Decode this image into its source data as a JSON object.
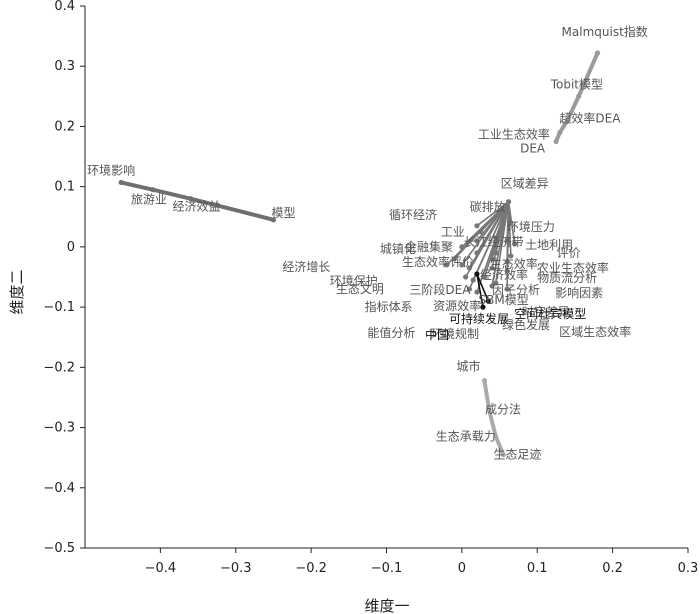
{
  "chart_data": {
    "type": "scatter",
    "title": "",
    "xlabel": "维度一",
    "ylabel": "维度二",
    "xlim": [
      -0.5,
      0.3
    ],
    "ylim": [
      -0.5,
      0.4
    ],
    "xticks": [
      "−0.4",
      "−0.3",
      "−0.2",
      "−0.1",
      "0",
      "0.1",
      "0.2",
      "0.3"
    ],
    "yticks": [
      "0.4",
      "0.3",
      "0.2",
      "0.1",
      "0",
      "−0.1",
      "−0.2",
      "−0.3",
      "−0.4",
      "−0.5"
    ],
    "xtick_values": [
      -0.4,
      -0.3,
      -0.2,
      -0.1,
      0,
      0.1,
      0.2,
      0.3
    ],
    "ytick_values": [
      0.4,
      0.3,
      0.2,
      0.1,
      0,
      -0.1,
      -0.2,
      -0.3,
      -0.4,
      -0.5
    ],
    "grid": false,
    "clusters": [
      {
        "color": "#9a9a9a",
        "points": [
          {
            "label": "Malmquist指数",
            "x": 0.18,
            "y": 0.322
          },
          {
            "label": "Tobit模型",
            "x": 0.155,
            "y": 0.25
          },
          {
            "label": "超效率DEA",
            "x": 0.14,
            "y": 0.21
          },
          {
            "label": "工业生态效率",
            "x": 0.13,
            "y": 0.19
          },
          {
            "label": "DEA",
            "x": 0.125,
            "y": 0.175
          }
        ]
      },
      {
        "color": "#6f6f6f",
        "points": [
          {
            "label": "环境影响",
            "x": -0.452,
            "y": 0.107
          },
          {
            "label": "旅游业",
            "x": -0.41,
            "y": 0.095
          },
          {
            "label": "经济效益",
            "x": -0.36,
            "y": 0.08
          },
          {
            "label": "模型",
            "x": -0.25,
            "y": 0.045
          }
        ]
      },
      {
        "color": "#777777",
        "points": [
          {
            "label": "区域差异",
            "x": 0.062,
            "y": 0.075
          },
          {
            "label": "碳排放",
            "x": 0.05,
            "y": 0.055
          },
          {
            "label": "环境压力",
            "x": 0.065,
            "y": 0.04
          },
          {
            "label": "循环经济",
            "x": 0.02,
            "y": 0.035
          },
          {
            "label": "工业",
            "x": 0.025,
            "y": 0.025
          },
          {
            "label": "长江经济带",
            "x": 0.045,
            "y": 0.015
          },
          {
            "label": "土地利用",
            "x": 0.06,
            "y": 0.01
          },
          {
            "label": "评价",
            "x": 0.07,
            "y": 0.005
          },
          {
            "label": "金融集聚",
            "x": 0.02,
            "y": 0.01
          },
          {
            "label": "城镇化",
            "x": 0.0,
            "y": 0.0
          },
          {
            "label": "生态效率",
            "x": 0.045,
            "y": -0.01
          },
          {
            "label": "农业生态效率",
            "x": 0.065,
            "y": -0.015
          },
          {
            "label": "生态效率评价",
            "x": 0.02,
            "y": -0.01
          },
          {
            "label": "经济效率",
            "x": 0.04,
            "y": -0.02
          },
          {
            "label": "物质流分析",
            "x": 0.06,
            "y": -0.025
          },
          {
            "label": "经济增长",
            "x": -0.01,
            "y": -0.02
          },
          {
            "label": "环境保护",
            "x": -0.02,
            "y": -0.03
          },
          {
            "label": "生态文明",
            "x": 0.0,
            "y": -0.03
          },
          {
            "label": "三阶段DEA",
            "x": 0.01,
            "y": -0.035
          },
          {
            "label": "因子分析",
            "x": 0.04,
            "y": -0.035
          },
          {
            "label": "影响因素",
            "x": 0.06,
            "y": -0.04
          },
          {
            "label": "指标体系",
            "x": 0.005,
            "y": -0.05
          },
          {
            "label": "资源效率",
            "x": 0.015,
            "y": -0.055
          },
          {
            "label": "SBM模型",
            "x": 0.03,
            "y": -0.05
          },
          {
            "label": "时空差异",
            "x": 0.045,
            "y": -0.06
          },
          {
            "label": "能值分析",
            "x": 0.01,
            "y": -0.07
          },
          {
            "label": "环境规制",
            "x": 0.02,
            "y": -0.075
          },
          {
            "label": "绿色发展",
            "x": 0.04,
            "y": -0.065
          },
          {
            "label": "区域生态效率",
            "x": 0.06,
            "y": -0.07
          }
        ]
      },
      {
        "color": "#111111",
        "points": [
          {
            "label": "中国",
            "x": 0.02,
            "y": -0.045
          },
          {
            "label": "可持续发展",
            "x": 0.028,
            "y": -0.1
          },
          {
            "label": "空间杜宾模型",
            "x": 0.035,
            "y": -0.09
          }
        ]
      },
      {
        "color": "#aaaaaa",
        "points": [
          {
            "label": "城市",
            "x": 0.03,
            "y": -0.222
          },
          {
            "label": "成分法",
            "x": 0.036,
            "y": -0.27
          },
          {
            "label": "生态承载力",
            "x": 0.045,
            "y": -0.315
          },
          {
            "label": "生态足迹",
            "x": 0.055,
            "y": -0.345
          }
        ]
      }
    ]
  }
}
